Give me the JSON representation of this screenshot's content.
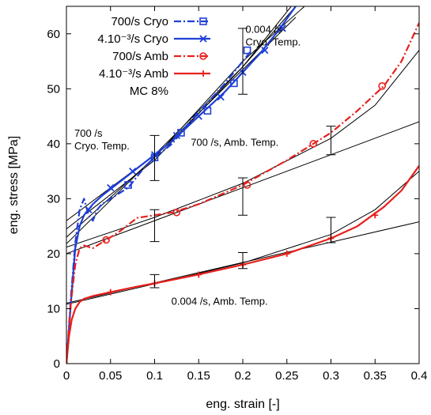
{
  "chart_data": {
    "type": "line",
    "title": "",
    "xlabel": "eng. strain [-]",
    "ylabel": "eng. stress [MPa]",
    "xlim": [
      0,
      0.4
    ],
    "ylim": [
      0,
      65
    ],
    "xticks": [
      0,
      0.05,
      0.1,
      0.15,
      0.2,
      0.25,
      0.3,
      0.35,
      0.4
    ],
    "yticks": [
      0,
      10,
      20,
      30,
      40,
      50,
      60
    ],
    "xtick_labels": [
      "0",
      "0.05",
      "0.1",
      "0.15",
      "0.2",
      "0.25",
      "0.3",
      "0.35",
      "0.4"
    ],
    "ytick_labels": [
      "0",
      "10",
      "20",
      "30",
      "40",
      "50",
      "60"
    ],
    "grid": false,
    "legend_position": "top-left",
    "legend_note": "MC 8%",
    "series": [
      {
        "name": "700/s Cryo",
        "color": "#1f3fd6",
        "dash": "dashdot",
        "marker": "square",
        "x": [
          0,
          0.005,
          0.01,
          0.015,
          0.02,
          0.025,
          0.03,
          0.035,
          0.04,
          0.05,
          0.06,
          0.07,
          0.08,
          0.09,
          0.1,
          0.12,
          0.14,
          0.16,
          0.18,
          0.2,
          0.21
        ],
        "y": [
          0,
          12,
          22,
          28,
          30,
          27,
          26,
          28,
          29,
          30,
          31,
          32,
          34,
          36,
          37.5,
          40,
          44,
          47.5,
          51,
          55,
          57
        ],
        "marker_x": [
          0.07,
          0.1,
          0.13,
          0.16,
          0.19,
          0.205
        ],
        "marker_y": [
          32.5,
          37.5,
          42,
          46,
          51,
          57
        ]
      },
      {
        "name": "4.10⁻³/s Cryo",
        "color": "#1f3fd6",
        "dash": "solid",
        "marker": "cross",
        "x": [
          0,
          0.005,
          0.01,
          0.015,
          0.02,
          0.03,
          0.04,
          0.06,
          0.08,
          0.1,
          0.12,
          0.15,
          0.18,
          0.2,
          0.22,
          0.24,
          0.26
        ],
        "y": [
          0,
          11,
          21,
          25,
          27,
          29,
          30.5,
          33,
          35.5,
          38,
          40.5,
          45,
          49.5,
          53,
          56.5,
          60.5,
          65
        ],
        "marker_x": [
          0.025,
          0.05,
          0.075,
          0.1,
          0.125,
          0.15,
          0.175,
          0.2,
          0.225,
          0.245
        ],
        "marker_y": [
          28,
          32,
          35,
          38,
          41.5,
          45,
          48.5,
          53,
          57,
          61
        ]
      },
      {
        "name": "700/s Amb",
        "color": "#e8201c",
        "dash": "dashdot",
        "marker": "circle",
        "x": [
          0,
          0.005,
          0.01,
          0.015,
          0.02,
          0.03,
          0.04,
          0.05,
          0.06,
          0.08,
          0.1,
          0.12,
          0.15,
          0.2,
          0.25,
          0.28,
          0.3,
          0.33,
          0.36,
          0.38,
          0.4
        ],
        "y": [
          0,
          11,
          18,
          21,
          21.5,
          21,
          22,
          23,
          24,
          26.5,
          27,
          27.5,
          29,
          32.5,
          37,
          40,
          42,
          46,
          50.5,
          55,
          62
        ],
        "marker_x": [
          0.045,
          0.125,
          0.205,
          0.28,
          0.358
        ],
        "marker_y": [
          22.5,
          27.5,
          32.5,
          40,
          50.5
        ]
      },
      {
        "name": "4.10⁻³/s Amb",
        "color": "#e8201c",
        "dash": "solid",
        "marker": "plus",
        "x": [
          0,
          0.003,
          0.006,
          0.01,
          0.015,
          0.02,
          0.03,
          0.05,
          0.08,
          0.1,
          0.15,
          0.2,
          0.25,
          0.3,
          0.33,
          0.36,
          0.38,
          0.4
        ],
        "y": [
          0,
          5,
          8,
          10,
          11.2,
          11.8,
          12.3,
          13,
          14,
          14.6,
          16.2,
          18,
          20,
          22.8,
          25,
          28.5,
          31.5,
          36
        ],
        "marker_x": [
          0.05,
          0.1,
          0.15,
          0.2,
          0.25,
          0.3,
          0.35
        ],
        "marker_y": [
          13,
          14.6,
          16.2,
          18,
          20,
          22.8,
          27
        ]
      }
    ],
    "fit_lines": [
      {
        "x": [
          0,
          0.4
        ],
        "y": [
          11,
          25.8
        ]
      },
      {
        "x": [
          0,
          0.1,
          0.2,
          0.3,
          0.35,
          0.4
        ],
        "y": [
          10.8,
          14.5,
          18.3,
          23.5,
          28,
          35
        ]
      },
      {
        "x": [
          0,
          0.4
        ],
        "y": [
          20,
          44
        ]
      },
      {
        "x": [
          0,
          0.1,
          0.2,
          0.3,
          0.35,
          0.4
        ],
        "y": [
          21.2,
          26.6,
          32.8,
          41,
          47,
          57
        ]
      },
      {
        "x": [
          0,
          0.26
        ],
        "y": [
          21.8,
          63
        ]
      },
      {
        "x": [
          0,
          0.1,
          0.2,
          0.26
        ],
        "y": [
          26,
          38,
          54,
          65
        ]
      },
      {
        "x": [
          0,
          0.1,
          0.2,
          0.255
        ],
        "y": [
          24.5,
          37,
          54,
          65
        ]
      },
      {
        "x": [
          0,
          0.1,
          0.2,
          0.27
        ],
        "y": [
          23,
          37.5,
          55,
          65
        ]
      }
    ],
    "error_bars": [
      {
        "x": 0.1,
        "y": 37.5,
        "low": 33.3,
        "high": 41.5
      },
      {
        "x": 0.1,
        "y": 25,
        "low": 22.2,
        "high": 28
      },
      {
        "x": 0.1,
        "y": 15,
        "low": 13.8,
        "high": 16.2
      },
      {
        "x": 0.2,
        "y": 55,
        "low": 49,
        "high": 61
      },
      {
        "x": 0.2,
        "y": 30.5,
        "low": 27,
        "high": 33.8
      },
      {
        "x": 0.2,
        "y": 18.8,
        "low": 17.3,
        "high": 20.2
      },
      {
        "x": 0.3,
        "y": 40.5,
        "low": 38,
        "high": 43.2
      },
      {
        "x": 0.3,
        "y": 24.3,
        "low": 22,
        "high": 26.6
      }
    ],
    "annotations": [
      {
        "lines": [
          "0.004 /s",
          "Cryo. Temp."
        ],
        "x": 0.203,
        "y": 60.2
      },
      {
        "lines": [
          "700 /s",
          "Cryo. Temp."
        ],
        "x": 0.009,
        "y": 41.3
      },
      {
        "lines": [
          "700 /s, Amb. Temp."
        ],
        "x": 0.141,
        "y": 39.6
      },
      {
        "lines": [
          "0.004 /s, Amb. Temp."
        ],
        "x": 0.119,
        "y": 10.7
      }
    ]
  }
}
